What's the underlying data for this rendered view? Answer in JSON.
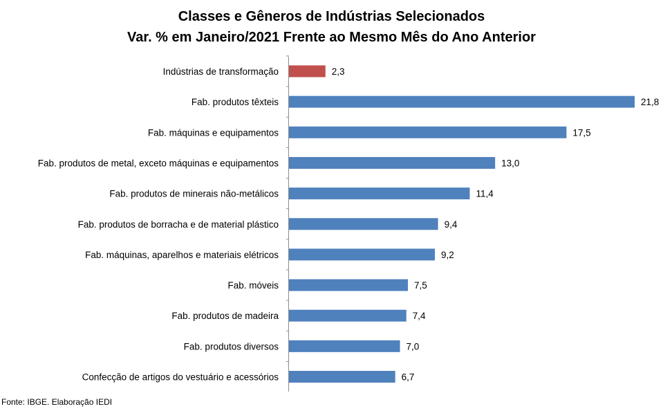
{
  "chart_data": {
    "type": "bar",
    "orientation": "horizontal",
    "title": "Classes e Gêneros de Indústrias Selecionados",
    "subtitle": "Var. % em Janeiro/2021 Frente ao Mesmo Mês do Ano Anterior",
    "categories": [
      "Indústrias de transformação",
      "Fab. produtos têxteis",
      "Fab. máquinas e equipamentos",
      "Fab. produtos de metal, exceto máquinas e equipamentos",
      "Fab. produtos de minerais não-metálicos",
      "Fab. produtos de borracha e de material plástico",
      "Fab. máquinas, aparelhos e materiais elétricos",
      "Fab. móveis",
      "Fab. produtos de madeira",
      "Fab. produtos diversos",
      "Confecção de artigos do vestuário e acessórios"
    ],
    "values": [
      2.3,
      21.8,
      17.5,
      13.0,
      11.4,
      9.4,
      9.2,
      7.5,
      7.4,
      7.0,
      6.7
    ],
    "value_labels": [
      "2,3",
      "21,8",
      "17,5",
      "13,0",
      "11,4",
      "9,4",
      "9,2",
      "7,5",
      "7,4",
      "7,0",
      "6,7"
    ],
    "colors": [
      "#c0504d",
      "#4f81bd",
      "#4f81bd",
      "#4f81bd",
      "#4f81bd",
      "#4f81bd",
      "#4f81bd",
      "#4f81bd",
      "#4f81bd",
      "#4f81bd",
      "#4f81bd"
    ],
    "xlim": [
      0,
      22
    ],
    "grid": false,
    "legend": "none"
  },
  "source": "Fonte: IBGE. Elaboração IEDI"
}
